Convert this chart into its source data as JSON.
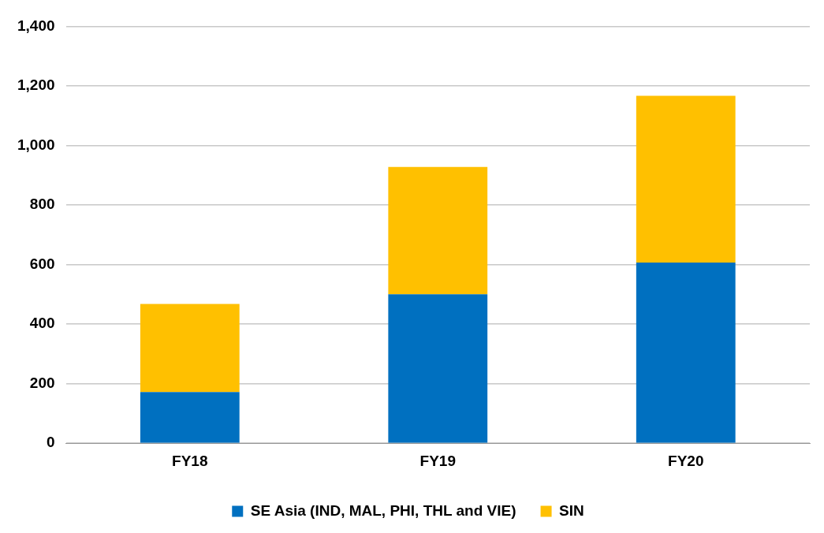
{
  "chart_data": {
    "type": "bar",
    "stacked": true,
    "categories": [
      "FY18",
      "FY19",
      "FY20"
    ],
    "series": [
      {
        "name": "SE Asia (IND, MAL, PHI, THL and VIE)",
        "color": "#0070c0",
        "values": [
          172,
          500,
          607
        ]
      },
      {
        "name": "SIN",
        "color": "#ffc000",
        "values": [
          296,
          428,
          560
        ]
      }
    ],
    "ylim": [
      0,
      1400
    ],
    "yticks": [
      0,
      200,
      400,
      600,
      800,
      {
        "value": 1000,
        "label": "1,000"
      },
      {
        "value": 1200,
        "label": "1,200"
      },
      {
        "value": 1400,
        "label": "1,400"
      }
    ],
    "grid": "y",
    "legend": "bottom"
  }
}
